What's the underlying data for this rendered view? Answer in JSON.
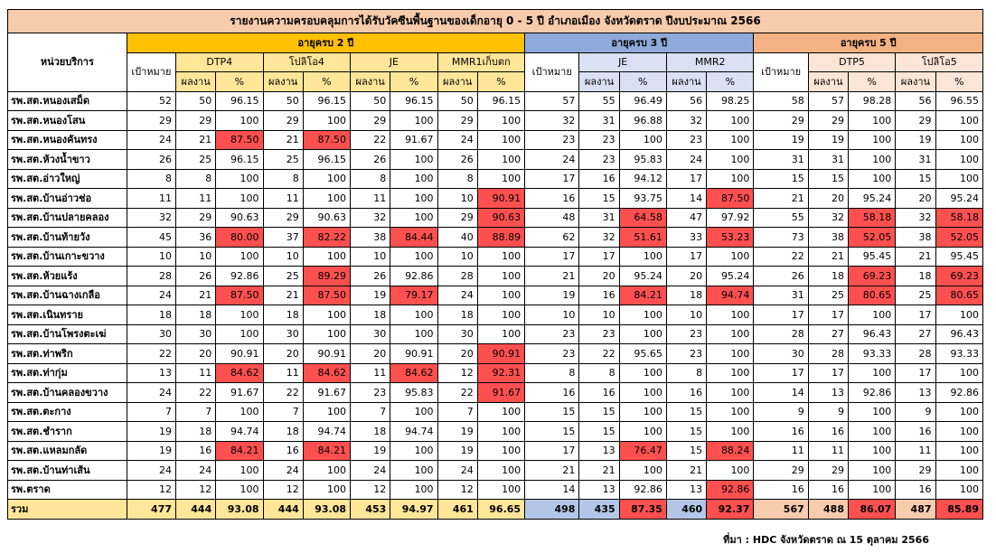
{
  "title": "รายงานความครอบคลุมการได้รับวัคซีนพื้นฐานของเด็กอายุ 0 - 5 ปี อำเภอเมือง จังหวัดตราด ปีงบประมาณ 2566",
  "unit_header": "หน่วยบริการ",
  "target_label": "เป้าหมาย",
  "result_label": "ผลงาน",
  "percent_label": "%",
  "groups": [
    {
      "label": "อายุครบ 2 ปี",
      "vaccines": [
        "DTP4",
        "โปลิโอ4",
        "JE",
        "MMR1เก็บตก"
      ]
    },
    {
      "label": "อายุครบ 3 ปี",
      "vaccines": [
        "JE",
        "MMR2"
      ]
    },
    {
      "label": "อายุครบ 5 ปี",
      "vaccines": [
        "DTP5",
        "โปลิโอ5"
      ]
    }
  ],
  "rows": [
    {
      "name": "รพ.สต.หนองเสม็ด",
      "v": [
        "52",
        "50",
        "96.15",
        "50",
        "96.15",
        "50",
        "96.15",
        "50",
        "96.15",
        "57",
        "55",
        "96.49",
        "56",
        "98.25",
        "58",
        "57",
        "98.28",
        "56",
        "96.55"
      ],
      "red": []
    },
    {
      "name": "รพ.สต.หนองโสน",
      "v": [
        "29",
        "29",
        "100",
        "29",
        "100",
        "29",
        "100",
        "29",
        "100",
        "32",
        "31",
        "96.88",
        "32",
        "100",
        "29",
        "29",
        "100",
        "29",
        "100"
      ],
      "red": []
    },
    {
      "name": "รพ.สต.หนองคันทรง",
      "v": [
        "24",
        "21",
        "87.50",
        "21",
        "87.50",
        "22",
        "91.67",
        "24",
        "100",
        "23",
        "23",
        "100",
        "23",
        "100",
        "19",
        "19",
        "100",
        "19",
        "100"
      ],
      "red": [
        2,
        4
      ]
    },
    {
      "name": "รพ.สต.ห้วงน้ำขาว",
      "v": [
        "26",
        "25",
        "96.15",
        "25",
        "96.15",
        "26",
        "100",
        "26",
        "100",
        "24",
        "23",
        "95.83",
        "24",
        "100",
        "31",
        "31",
        "100",
        "31",
        "100"
      ],
      "red": []
    },
    {
      "name": "รพ.สต.อ่าวใหญ่",
      "v": [
        "8",
        "8",
        "100",
        "8",
        "100",
        "8",
        "100",
        "8",
        "100",
        "17",
        "16",
        "94.12",
        "17",
        "100",
        "15",
        "15",
        "100",
        "15",
        "100"
      ],
      "red": []
    },
    {
      "name": "รพ.สต.บ้านอ่าวช่อ",
      "v": [
        "11",
        "11",
        "100",
        "11",
        "100",
        "11",
        "100",
        "10",
        "90.91",
        "16",
        "15",
        "93.75",
        "14",
        "87.50",
        "21",
        "20",
        "95.24",
        "20",
        "95.24"
      ],
      "red": [
        8,
        13
      ]
    },
    {
      "name": "รพ.สต.บ้านปลายคลอง",
      "v": [
        "32",
        "29",
        "90.63",
        "29",
        "90.63",
        "32",
        "100",
        "29",
        "90.63",
        "48",
        "31",
        "64.58",
        "47",
        "97.92",
        "55",
        "32",
        "58.18",
        "32",
        "58.18"
      ],
      "red": [
        8,
        11,
        16,
        18
      ]
    },
    {
      "name": "รพ.สต.บ้านท้ายวัง",
      "v": [
        "45",
        "36",
        "80.00",
        "37",
        "82.22",
        "38",
        "84.44",
        "40",
        "88.89",
        "62",
        "32",
        "51.61",
        "33",
        "53.23",
        "73",
        "38",
        "52.05",
        "38",
        "52.05"
      ],
      "red": [
        2,
        4,
        6,
        8,
        11,
        13,
        16,
        18
      ]
    },
    {
      "name": "รพ.สต.บ้านเกาะขวาง",
      "v": [
        "10",
        "10",
        "100",
        "10",
        "100",
        "10",
        "100",
        "10",
        "100",
        "17",
        "17",
        "100",
        "17",
        "100",
        "22",
        "21",
        "95.45",
        "21",
        "95.45"
      ],
      "red": []
    },
    {
      "name": "รพ.สต.ห้วยแร้ง",
      "v": [
        "28",
        "26",
        "92.86",
        "25",
        "89.29",
        "26",
        "92.86",
        "28",
        "100",
        "21",
        "20",
        "95.24",
        "20",
        "95.24",
        "26",
        "18",
        "69.23",
        "18",
        "69.23"
      ],
      "red": [
        4,
        16,
        18
      ]
    },
    {
      "name": "รพ.สต.บ้านฉางเกลือ",
      "v": [
        "24",
        "21",
        "87.50",
        "21",
        "87.50",
        "19",
        "79.17",
        "24",
        "100",
        "19",
        "16",
        "84.21",
        "18",
        "94.74",
        "31",
        "25",
        "80.65",
        "25",
        "80.65"
      ],
      "red": [
        2,
        4,
        6,
        11,
        13,
        16,
        18
      ]
    },
    {
      "name": "รพ.สต.เนินทราย",
      "v": [
        "18",
        "18",
        "100",
        "18",
        "100",
        "18",
        "100",
        "18",
        "100",
        "10",
        "10",
        "100",
        "10",
        "100",
        "17",
        "17",
        "100",
        "17",
        "100"
      ],
      "red": []
    },
    {
      "name": "รพ.สต.บ้านโพรงตะเฆ่",
      "v": [
        "30",
        "30",
        "100",
        "30",
        "100",
        "30",
        "100",
        "30",
        "100",
        "23",
        "23",
        "100",
        "23",
        "100",
        "28",
        "27",
        "96.43",
        "27",
        "96.43"
      ],
      "red": []
    },
    {
      "name": "รพ.สต.ท่าพริก",
      "v": [
        "22",
        "20",
        "90.91",
        "20",
        "90.91",
        "20",
        "90.91",
        "20",
        "90.91",
        "23",
        "22",
        "95.65",
        "23",
        "100",
        "30",
        "28",
        "93.33",
        "28",
        "93.33"
      ],
      "red": [
        8
      ]
    },
    {
      "name": "รพ.สต.ท่ากุ่ม",
      "v": [
        "13",
        "11",
        "84.62",
        "11",
        "84.62",
        "11",
        "84.62",
        "12",
        "92.31",
        "8",
        "8",
        "100",
        "8",
        "100",
        "17",
        "17",
        "100",
        "17",
        "100"
      ],
      "red": [
        2,
        4,
        6,
        8
      ]
    },
    {
      "name": "รพ.สต.บ้านคลองขวาง",
      "v": [
        "24",
        "22",
        "91.67",
        "22",
        "91.67",
        "23",
        "95.83",
        "22",
        "91.67",
        "16",
        "16",
        "100",
        "16",
        "100",
        "14",
        "13",
        "92.86",
        "13",
        "92.86"
      ],
      "red": [
        8
      ]
    },
    {
      "name": "รพ.สต.ตะกาง",
      "v": [
        "7",
        "7",
        "100",
        "7",
        "100",
        "7",
        "100",
        "7",
        "100",
        "15",
        "15",
        "100",
        "15",
        "100",
        "9",
        "9",
        "100",
        "9",
        "100"
      ],
      "red": []
    },
    {
      "name": "รพ.สต.ชำราก",
      "v": [
        "19",
        "18",
        "94.74",
        "18",
        "94.74",
        "18",
        "94.74",
        "19",
        "100",
        "15",
        "15",
        "100",
        "15",
        "100",
        "16",
        "16",
        "100",
        "16",
        "100"
      ],
      "red": []
    },
    {
      "name": "รพ.สต.แหลมกลัด",
      "v": [
        "19",
        "16",
        "84.21",
        "16",
        "84.21",
        "19",
        "100",
        "19",
        "100",
        "17",
        "13",
        "76.47",
        "15",
        "88.24",
        "11",
        "11",
        "100",
        "11",
        "100"
      ],
      "red": [
        2,
        4,
        11,
        13
      ]
    },
    {
      "name": "รพ.สต.บ้านท่าเส้น",
      "v": [
        "24",
        "24",
        "100",
        "24",
        "100",
        "24",
        "100",
        "24",
        "100",
        "21",
        "21",
        "100",
        "21",
        "100",
        "29",
        "29",
        "100",
        "29",
        "100"
      ],
      "red": []
    },
    {
      "name": "รพ.ตราด",
      "v": [
        "12",
        "12",
        "100",
        "12",
        "100",
        "12",
        "100",
        "12",
        "100",
        "14",
        "13",
        "92.86",
        "13",
        "92.86",
        "16",
        "16",
        "100",
        "16",
        "100"
      ],
      "red": [
        13
      ]
    }
  ],
  "total": {
    "name": "รวม",
    "v": [
      "477",
      "444",
      "93.08",
      "444",
      "93.08",
      "453",
      "94.97",
      "461",
      "96.65",
      "498",
      "435",
      "87.35",
      "460",
      "92.37",
      "567",
      "488",
      "86.07",
      "487",
      "85.89"
    ],
    "red": [
      11,
      13,
      16,
      18
    ]
  },
  "source": "ที่มา : HDC จังหวัดตราด ณ 15 ตุลาคม 2566"
}
